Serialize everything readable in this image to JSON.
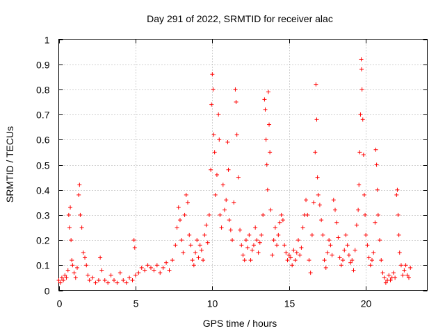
{
  "chart_data": {
    "type": "scatter",
    "title": "Day 291 of 2022, SRMTID for receiver alac",
    "xlabel": "GPS time / hours",
    "ylabel": "SRMTID / TECUs",
    "xlim": [
      0,
      24
    ],
    "ylim": [
      0,
      1
    ],
    "xticks": [
      0,
      5,
      10,
      15,
      20
    ],
    "xtick_labels": [
      "0",
      "5",
      "10",
      "15",
      "20"
    ],
    "yticks": [
      0,
      0.1,
      0.2,
      0.3,
      0.4,
      0.5,
      0.6,
      0.7,
      0.8,
      0.9,
      1
    ],
    "ytick_labels": [
      "0",
      "0.1",
      "0.2",
      "0.3",
      "0.4",
      "0.5",
      "0.6",
      "0.7",
      "0.8",
      "0.9",
      "1"
    ],
    "grid": true,
    "marker": "+",
    "color": "#ff0000",
    "series": [
      {
        "name": "SRMTID",
        "points": [
          [
            0.0,
            0.04
          ],
          [
            0.1,
            0.03
          ],
          [
            0.2,
            0.05
          ],
          [
            0.3,
            0.04
          ],
          [
            0.4,
            0.06
          ],
          [
            0.5,
            0.05
          ],
          [
            0.6,
            0.08
          ],
          [
            0.65,
            0.3
          ],
          [
            0.7,
            0.25
          ],
          [
            0.75,
            0.33
          ],
          [
            0.8,
            0.2
          ],
          [
            0.85,
            0.12
          ],
          [
            0.9,
            0.1
          ],
          [
            1.0,
            0.07
          ],
          [
            1.1,
            0.05
          ],
          [
            1.2,
            0.09
          ],
          [
            1.3,
            0.38
          ],
          [
            1.35,
            0.42
          ],
          [
            1.4,
            0.3
          ],
          [
            1.5,
            0.25
          ],
          [
            1.6,
            0.15
          ],
          [
            1.7,
            0.13
          ],
          [
            1.8,
            0.1
          ],
          [
            1.9,
            0.06
          ],
          [
            2.0,
            0.04
          ],
          [
            2.2,
            0.05
          ],
          [
            2.4,
            0.03
          ],
          [
            2.6,
            0.04
          ],
          [
            2.7,
            0.13
          ],
          [
            2.8,
            0.08
          ],
          [
            3.0,
            0.04
          ],
          [
            3.2,
            0.03
          ],
          [
            3.4,
            0.06
          ],
          [
            3.6,
            0.04
          ],
          [
            3.8,
            0.03
          ],
          [
            4.0,
            0.07
          ],
          [
            4.2,
            0.04
          ],
          [
            4.4,
            0.03
          ],
          [
            4.6,
            0.05
          ],
          [
            4.8,
            0.04
          ],
          [
            4.9,
            0.2
          ],
          [
            4.95,
            0.17
          ],
          [
            5.0,
            0.06
          ],
          [
            5.2,
            0.07
          ],
          [
            5.4,
            0.09
          ],
          [
            5.6,
            0.08
          ],
          [
            5.8,
            0.1
          ],
          [
            6.0,
            0.09
          ],
          [
            6.2,
            0.08
          ],
          [
            6.4,
            0.1
          ],
          [
            6.6,
            0.07
          ],
          [
            6.8,
            0.09
          ],
          [
            7.0,
            0.11
          ],
          [
            7.2,
            0.08
          ],
          [
            7.4,
            0.12
          ],
          [
            7.6,
            0.18
          ],
          [
            7.7,
            0.25
          ],
          [
            7.8,
            0.33
          ],
          [
            7.9,
            0.28
          ],
          [
            8.0,
            0.2
          ],
          [
            8.1,
            0.15
          ],
          [
            8.2,
            0.3
          ],
          [
            8.3,
            0.38
          ],
          [
            8.4,
            0.35
          ],
          [
            8.5,
            0.22
          ],
          [
            8.6,
            0.18
          ],
          [
            8.7,
            0.12
          ],
          [
            8.8,
            0.1
          ],
          [
            8.9,
            0.15
          ],
          [
            9.0,
            0.2
          ],
          [
            9.1,
            0.13
          ],
          [
            9.2,
            0.18
          ],
          [
            9.3,
            0.16
          ],
          [
            9.4,
            0.12
          ],
          [
            9.5,
            0.22
          ],
          [
            9.6,
            0.26
          ],
          [
            9.7,
            0.19
          ],
          [
            9.8,
            0.3
          ],
          [
            9.9,
            0.48
          ],
          [
            9.95,
            0.74
          ],
          [
            10.0,
            0.86
          ],
          [
            10.05,
            0.8
          ],
          [
            10.1,
            0.62
          ],
          [
            10.15,
            0.55
          ],
          [
            10.2,
            0.38
          ],
          [
            10.3,
            0.46
          ],
          [
            10.4,
            0.7
          ],
          [
            10.45,
            0.6
          ],
          [
            10.5,
            0.3
          ],
          [
            10.6,
            0.25
          ],
          [
            10.7,
            0.42
          ],
          [
            10.8,
            0.32
          ],
          [
            10.9,
            0.36
          ],
          [
            11.0,
            0.59
          ],
          [
            11.05,
            0.48
          ],
          [
            11.1,
            0.28
          ],
          [
            11.2,
            0.24
          ],
          [
            11.3,
            0.2
          ],
          [
            11.4,
            0.35
          ],
          [
            11.5,
            0.8
          ],
          [
            11.55,
            0.75
          ],
          [
            11.6,
            0.62
          ],
          [
            11.7,
            0.45
          ],
          [
            11.8,
            0.24
          ],
          [
            11.9,
            0.18
          ],
          [
            12.0,
            0.14
          ],
          [
            12.1,
            0.12
          ],
          [
            12.2,
            0.2
          ],
          [
            12.3,
            0.17
          ],
          [
            12.4,
            0.22
          ],
          [
            12.5,
            0.12
          ],
          [
            12.6,
            0.16
          ],
          [
            12.7,
            0.18
          ],
          [
            12.8,
            0.25
          ],
          [
            12.9,
            0.2
          ],
          [
            13.0,
            0.15
          ],
          [
            13.1,
            0.19
          ],
          [
            13.2,
            0.22
          ],
          [
            13.3,
            0.3
          ],
          [
            13.4,
            0.76
          ],
          [
            13.45,
            0.72
          ],
          [
            13.5,
            0.6
          ],
          [
            13.55,
            0.5
          ],
          [
            13.6,
            0.4
          ],
          [
            13.65,
            0.79
          ],
          [
            13.7,
            0.66
          ],
          [
            13.75,
            0.55
          ],
          [
            13.8,
            0.32
          ],
          [
            13.9,
            0.14
          ],
          [
            14.0,
            0.2
          ],
          [
            14.1,
            0.25
          ],
          [
            14.2,
            0.18
          ],
          [
            14.3,
            0.22
          ],
          [
            14.4,
            0.27
          ],
          [
            14.5,
            0.3
          ],
          [
            14.6,
            0.28
          ],
          [
            14.7,
            0.18
          ],
          [
            14.8,
            0.15
          ],
          [
            14.9,
            0.12
          ],
          [
            15.0,
            0.14
          ],
          [
            15.1,
            0.13
          ],
          [
            15.2,
            0.1
          ],
          [
            15.3,
            0.16
          ],
          [
            15.4,
            0.12
          ],
          [
            15.5,
            0.15
          ],
          [
            15.6,
            0.2
          ],
          [
            15.7,
            0.14
          ],
          [
            15.8,
            0.17
          ],
          [
            15.9,
            0.25
          ],
          [
            16.0,
            0.3
          ],
          [
            16.1,
            0.36
          ],
          [
            16.2,
            0.3
          ],
          [
            16.3,
            0.12
          ],
          [
            16.4,
            0.07
          ],
          [
            16.5,
            0.22
          ],
          [
            16.6,
            0.35
          ],
          [
            16.7,
            0.55
          ],
          [
            16.75,
            0.82
          ],
          [
            16.8,
            0.68
          ],
          [
            16.85,
            0.45
          ],
          [
            16.9,
            0.38
          ],
          [
            17.0,
            0.34
          ],
          [
            17.1,
            0.28
          ],
          [
            17.2,
            0.22
          ],
          [
            17.3,
            0.12
          ],
          [
            17.4,
            0.09
          ],
          [
            17.5,
            0.15
          ],
          [
            17.6,
            0.2
          ],
          [
            17.7,
            0.18
          ],
          [
            17.8,
            0.14
          ],
          [
            17.9,
            0.36
          ],
          [
            18.0,
            0.32
          ],
          [
            18.1,
            0.27
          ],
          [
            18.2,
            0.21
          ],
          [
            18.3,
            0.13
          ],
          [
            18.4,
            0.1
          ],
          [
            18.5,
            0.12
          ],
          [
            18.6,
            0.16
          ],
          [
            18.7,
            0.22
          ],
          [
            18.8,
            0.18
          ],
          [
            18.9,
            0.14
          ],
          [
            19.0,
            0.11
          ],
          [
            19.1,
            0.12
          ],
          [
            19.2,
            0.08
          ],
          [
            19.3,
            0.16
          ],
          [
            19.4,
            0.26
          ],
          [
            19.5,
            0.32
          ],
          [
            19.55,
            0.42
          ],
          [
            19.6,
            0.55
          ],
          [
            19.65,
            0.7
          ],
          [
            19.7,
            0.92
          ],
          [
            19.72,
            0.88
          ],
          [
            19.75,
            0.8
          ],
          [
            19.8,
            0.68
          ],
          [
            19.85,
            0.54
          ],
          [
            19.9,
            0.38
          ],
          [
            19.95,
            0.3
          ],
          [
            20.0,
            0.22
          ],
          [
            20.1,
            0.18
          ],
          [
            20.2,
            0.13
          ],
          [
            20.3,
            0.1
          ],
          [
            20.4,
            0.12
          ],
          [
            20.5,
            0.15
          ],
          [
            20.6,
            0.27
          ],
          [
            20.65,
            0.56
          ],
          [
            20.7,
            0.5
          ],
          [
            20.75,
            0.4
          ],
          [
            20.8,
            0.3
          ],
          [
            20.9,
            0.2
          ],
          [
            21.0,
            0.12
          ],
          [
            21.1,
            0.07
          ],
          [
            21.2,
            0.05
          ],
          [
            21.3,
            0.03
          ],
          [
            21.4,
            0.04
          ],
          [
            21.5,
            0.06
          ],
          [
            21.6,
            0.04
          ],
          [
            21.7,
            0.05
          ],
          [
            21.8,
            0.07
          ],
          [
            21.9,
            0.05
          ],
          [
            22.0,
            0.38
          ],
          [
            22.05,
            0.4
          ],
          [
            22.1,
            0.3
          ],
          [
            22.15,
            0.22
          ],
          [
            22.2,
            0.15
          ],
          [
            22.3,
            0.1
          ],
          [
            22.4,
            0.06
          ],
          [
            22.5,
            0.08
          ],
          [
            22.6,
            0.1
          ],
          [
            22.7,
            0.06
          ],
          [
            22.8,
            0.05
          ],
          [
            22.9,
            0.09
          ]
        ]
      }
    ]
  }
}
